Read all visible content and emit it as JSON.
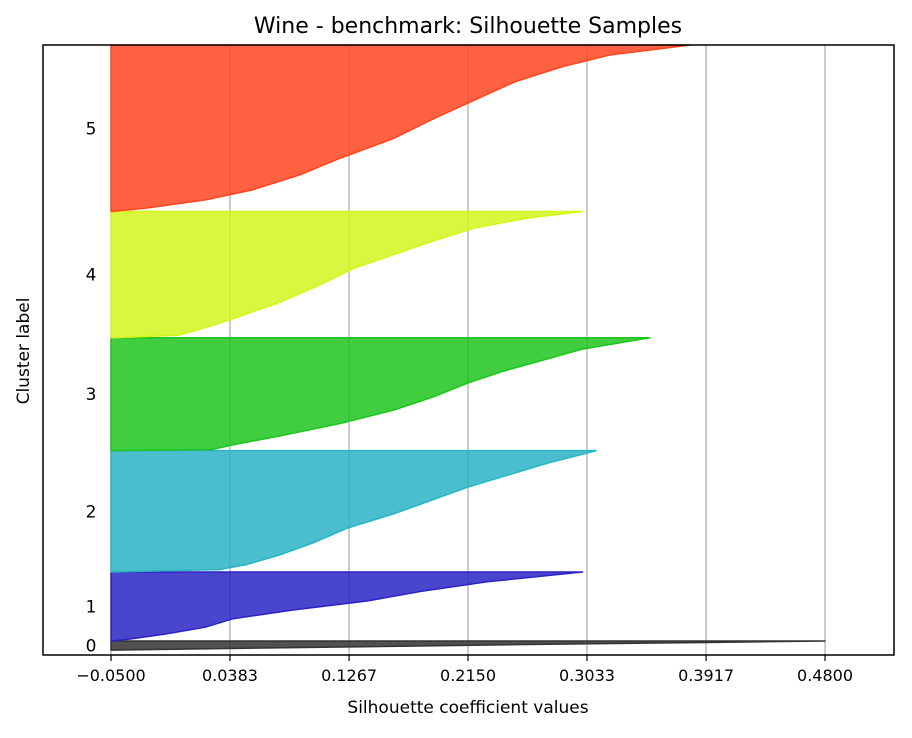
{
  "chart_data": {
    "type": "area",
    "title": "Wine - benchmark: Silhouette Samples",
    "xlabel": "Silhouette coefficient values",
    "ylabel": "Cluster label",
    "xticks": [
      -0.05,
      0.0383,
      0.1267,
      0.215,
      0.3033,
      0.3917,
      0.48
    ],
    "xtick_labels": [
      "−0.0500",
      "0.0383",
      "0.1267",
      "0.2150",
      "0.3033",
      "0.3917",
      "0.4800"
    ],
    "xlim": [
      -0.1005,
      0.5312
    ],
    "ylim": [
      0,
      100
    ],
    "grid": "vertical",
    "clusters": [
      {
        "label": "0",
        "color": "#333333",
        "y_range": [
          0.8,
          2.3
        ],
        "profile": [
          [
            0,
            -0.05
          ],
          [
            0.3,
            0.1
          ],
          [
            0.6,
            0.25
          ],
          [
            0.85,
            0.4
          ],
          [
            1.0,
            0.48
          ]
        ]
      },
      {
        "label": "1",
        "color": "#2a24c4",
        "y_range": [
          2.3,
          13.6
        ],
        "profile": [
          [
            0,
            -0.05
          ],
          [
            0.03,
            -0.035
          ],
          [
            0.1,
            -0.01
          ],
          [
            0.2,
            0.02
          ],
          [
            0.32,
            0.04
          ],
          [
            0.45,
            0.085
          ],
          [
            0.58,
            0.14
          ],
          [
            0.72,
            0.18
          ],
          [
            0.86,
            0.23
          ],
          [
            0.96,
            0.28
          ],
          [
            1.0,
            0.3
          ]
        ]
      },
      {
        "label": "2",
        "color": "#2bb3c5",
        "y_range": [
          13.6,
          33.5
        ],
        "profile": [
          [
            0,
            -0.05
          ],
          [
            0.02,
            0.03
          ],
          [
            0.06,
            0.05
          ],
          [
            0.14,
            0.075
          ],
          [
            0.24,
            0.1
          ],
          [
            0.36,
            0.125
          ],
          [
            0.48,
            0.16
          ],
          [
            0.6,
            0.19
          ],
          [
            0.7,
            0.215
          ],
          [
            0.8,
            0.245
          ],
          [
            0.9,
            0.275
          ],
          [
            0.97,
            0.3
          ],
          [
            1.0,
            0.31
          ]
        ]
      },
      {
        "label": "3",
        "color": "#1fc41f",
        "y_range": [
          33.5,
          52.0
        ],
        "profile": [
          [
            0,
            -0.05
          ],
          [
            0.01,
            0.025
          ],
          [
            0.05,
            0.04
          ],
          [
            0.13,
            0.075
          ],
          [
            0.24,
            0.12
          ],
          [
            0.36,
            0.16
          ],
          [
            0.48,
            0.19
          ],
          [
            0.6,
            0.215
          ],
          [
            0.7,
            0.24
          ],
          [
            0.8,
            0.27
          ],
          [
            0.9,
            0.3
          ],
          [
            0.96,
            0.33
          ],
          [
            1.0,
            0.35
          ]
        ]
      },
      {
        "label": "4",
        "color": "#d3f51c",
        "y_range": [
          52.0,
          72.7
        ],
        "profile": [
          [
            0,
            -0.05
          ],
          [
            0.02,
            0.0
          ],
          [
            0.08,
            0.02
          ],
          [
            0.15,
            0.04
          ],
          [
            0.28,
            0.075
          ],
          [
            0.42,
            0.105
          ],
          [
            0.55,
            0.13
          ],
          [
            0.66,
            0.16
          ],
          [
            0.77,
            0.19
          ],
          [
            0.87,
            0.22
          ],
          [
            0.95,
            0.26
          ],
          [
            1.0,
            0.3
          ]
        ]
      },
      {
        "label": "5",
        "color": "#ff4520",
        "y_range": [
          72.7,
          100.0
        ],
        "profile": [
          [
            0,
            -0.05
          ],
          [
            0.02,
            -0.025
          ],
          [
            0.07,
            0.02
          ],
          [
            0.13,
            0.055
          ],
          [
            0.22,
            0.09
          ],
          [
            0.32,
            0.12
          ],
          [
            0.44,
            0.16
          ],
          [
            0.56,
            0.19
          ],
          [
            0.67,
            0.22
          ],
          [
            0.78,
            0.25
          ],
          [
            0.87,
            0.285
          ],
          [
            0.94,
            0.32
          ],
          [
            0.98,
            0.36
          ],
          [
            1.0,
            0.38
          ]
        ]
      }
    ]
  }
}
